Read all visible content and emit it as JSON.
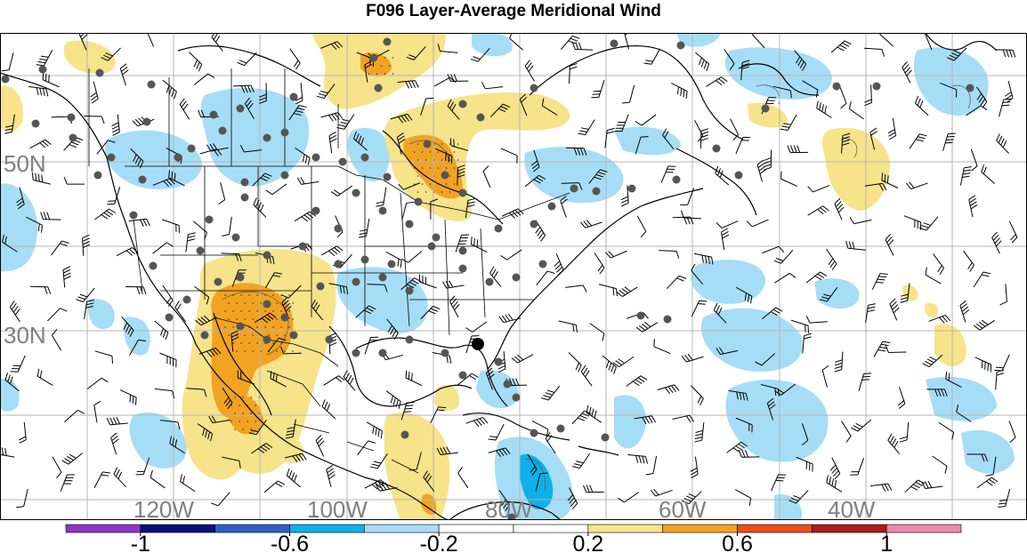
{
  "title": "F096 Layer-Average Meridional Wind",
  "map": {
    "lat_labels": [
      "50N",
      "30N"
    ],
    "lon_labels": [
      "120W",
      "100W",
      "80W",
      "60W",
      "40W"
    ],
    "label_color": "#808080",
    "grid_color": "#b5b5b5",
    "coastline_color": "#000000",
    "observation_marker_color": "#555555",
    "highlight_marker_color": "#000000",
    "barb_color": "#000000"
  },
  "colorbar": {
    "colors": [
      "#8f35c8",
      "#0c0e7c",
      "#2f5fc7",
      "#0fb0e8",
      "#a6ddf6",
      "#ffffff",
      "#ffffff",
      "#f7e38a",
      "#f2a322",
      "#ea4e1b",
      "#ac1c1c",
      "#ee88b0"
    ],
    "tick_labels": [
      "-1",
      "-0.6",
      "-0.2",
      "0.2",
      "0.6",
      "1"
    ],
    "min": -1.2,
    "max": 1.2,
    "tick_values": [
      -1,
      -0.6,
      -0.2,
      0.2,
      0.6,
      1
    ]
  }
}
